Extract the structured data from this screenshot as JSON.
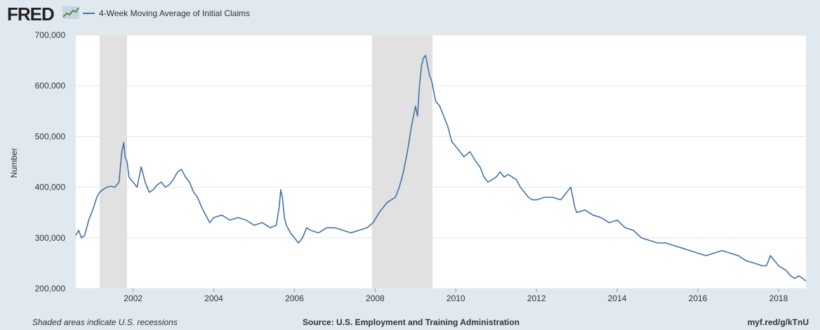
{
  "logo_text": "FRED",
  "legend_label": "4-Week Moving Average of Initial Claims",
  "footer": {
    "left": "Shaded areas indicate U.S. recessions",
    "center": "Source: U.S. Employment and Training Administration",
    "right": "myf.red/g/kTnU"
  },
  "colors": {
    "line": "#4572a7",
    "recession": "#e1e1e1",
    "plot_bg": "#ffffff",
    "page_bg": "#e1e9f0",
    "grid": "#e6e6e6"
  },
  "chart_data": {
    "type": "line",
    "title": "",
    "xlabel": "",
    "ylabel": "Number",
    "ylim": [
      200000,
      700000
    ],
    "xlim": [
      2000.58,
      2018.68
    ],
    "grid": true,
    "x_ticks": [
      "2002",
      "2004",
      "2006",
      "2008",
      "2010",
      "2012",
      "2014",
      "2016",
      "2018"
    ],
    "y_ticks": [
      "200,000",
      "300,000",
      "400,000",
      "500,000",
      "600,000",
      "700,000"
    ],
    "recessions": [
      [
        2001.17,
        2001.85
      ],
      [
        2007.92,
        2009.42
      ]
    ],
    "series": [
      {
        "name": "4-Week Moving Average of Initial Claims",
        "x": [
          2000.58,
          2000.65,
          2000.72,
          2000.8,
          2000.9,
          2001.0,
          2001.1,
          2001.17,
          2001.25,
          2001.35,
          2001.45,
          2001.55,
          2001.65,
          2001.72,
          2001.77,
          2001.8,
          2001.85,
          2001.9,
          2002.0,
          2002.1,
          2002.2,
          2002.3,
          2002.4,
          2002.5,
          2002.6,
          2002.7,
          2002.8,
          2002.9,
          2003.0,
          2003.1,
          2003.2,
          2003.3,
          2003.4,
          2003.5,
          2003.6,
          2003.7,
          2003.8,
          2003.9,
          2004.0,
          2004.2,
          2004.4,
          2004.6,
          2004.8,
          2005.0,
          2005.2,
          2005.4,
          2005.55,
          2005.62,
          2005.66,
          2005.7,
          2005.75,
          2005.8,
          2005.9,
          2006.0,
          2006.1,
          2006.2,
          2006.3,
          2006.4,
          2006.6,
          2006.8,
          2007.0,
          2007.2,
          2007.4,
          2007.6,
          2007.8,
          2007.95,
          2008.1,
          2008.2,
          2008.3,
          2008.4,
          2008.5,
          2008.6,
          2008.7,
          2008.8,
          2008.9,
          2009.0,
          2009.05,
          2009.1,
          2009.15,
          2009.2,
          2009.25,
          2009.3,
          2009.35,
          2009.4,
          2009.5,
          2009.6,
          2009.7,
          2009.8,
          2009.9,
          2010.0,
          2010.2,
          2010.35,
          2010.5,
          2010.6,
          2010.7,
          2010.8,
          2011.0,
          2011.1,
          2011.2,
          2011.3,
          2011.4,
          2011.5,
          2011.6,
          2011.7,
          2011.8,
          2011.9,
          2012.0,
          2012.2,
          2012.4,
          2012.6,
          2012.75,
          2012.85,
          2012.9,
          2012.95,
          2013.0,
          2013.2,
          2013.4,
          2013.6,
          2013.8,
          2014.0,
          2014.2,
          2014.4,
          2014.6,
          2014.8,
          2015.0,
          2015.2,
          2015.4,
          2015.6,
          2015.8,
          2016.0,
          2016.2,
          2016.4,
          2016.6,
          2016.8,
          2017.0,
          2017.2,
          2017.4,
          2017.6,
          2017.7,
          2017.75,
          2017.8,
          2017.9,
          2018.0,
          2018.1,
          2018.2,
          2018.3,
          2018.4,
          2018.5,
          2018.6,
          2018.68
        ],
        "y": [
          305000,
          315000,
          300000,
          305000,
          335000,
          355000,
          380000,
          390000,
          395000,
          400000,
          402000,
          400000,
          410000,
          470000,
          488000,
          460000,
          450000,
          420000,
          410000,
          400000,
          440000,
          410000,
          390000,
          395000,
          405000,
          410000,
          400000,
          405000,
          415000,
          430000,
          435000,
          420000,
          410000,
          390000,
          380000,
          360000,
          345000,
          330000,
          340000,
          345000,
          335000,
          340000,
          335000,
          325000,
          330000,
          320000,
          325000,
          360000,
          395000,
          380000,
          340000,
          325000,
          310000,
          300000,
          290000,
          300000,
          320000,
          315000,
          310000,
          320000,
          320000,
          315000,
          310000,
          315000,
          320000,
          330000,
          350000,
          360000,
          370000,
          375000,
          380000,
          400000,
          430000,
          470000,
          520000,
          560000,
          540000,
          600000,
          640000,
          655000,
          660000,
          640000,
          620000,
          610000,
          570000,
          560000,
          540000,
          520000,
          490000,
          480000,
          460000,
          470000,
          450000,
          440000,
          420000,
          410000,
          420000,
          430000,
          420000,
          425000,
          420000,
          415000,
          400000,
          390000,
          380000,
          375000,
          375000,
          380000,
          380000,
          375000,
          390000,
          400000,
          380000,
          360000,
          350000,
          355000,
          345000,
          340000,
          330000,
          335000,
          320000,
          315000,
          300000,
          295000,
          290000,
          290000,
          285000,
          280000,
          275000,
          270000,
          265000,
          270000,
          275000,
          270000,
          265000,
          255000,
          250000,
          245000,
          245000,
          255000,
          265000,
          255000,
          245000,
          240000,
          235000,
          225000,
          220000,
          225000,
          220000,
          215000
        ]
      }
    ]
  }
}
